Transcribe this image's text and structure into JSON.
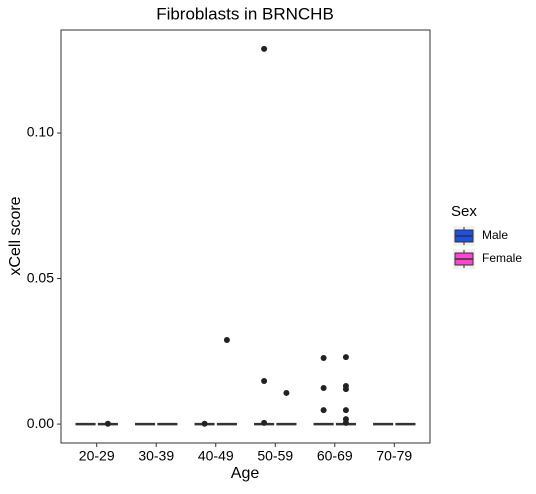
{
  "chart_data": {
    "type": "box",
    "title": "Fibroblasts in BRNCHB",
    "x_label": "Age",
    "y_label": "xCell score",
    "categories": [
      "20-29",
      "30-39",
      "40-49",
      "50-59",
      "60-69",
      "70-79"
    ],
    "legend_title": "Sex",
    "series": [
      {
        "name": "Male",
        "color": "#1d4fe6",
        "low": [
          0,
          0,
          0,
          0,
          0,
          0
        ],
        "q1": [
          0,
          0,
          0,
          0,
          0,
          0
        ],
        "median": [
          0,
          0,
          0,
          0,
          0,
          0
        ],
        "q3": [
          0,
          0,
          0,
          0,
          0,
          0
        ],
        "high": [
          0,
          0,
          0,
          0,
          0,
          0
        ],
        "outliers": [
          [],
          [],
          [
            0.0001
          ],
          [
            0.1289,
            0.0148,
            0.0004
          ],
          [
            0.0227,
            0.0124,
            0.0048
          ],
          []
        ]
      },
      {
        "name": "Female",
        "color": "#fc46d0",
        "low": [
          0,
          0,
          0,
          0,
          0,
          0
        ],
        "q1": [
          0,
          0,
          0,
          0,
          0,
          0
        ],
        "median": [
          0,
          0,
          0,
          0,
          0,
          0
        ],
        "q3": [
          0,
          0,
          0,
          0,
          0,
          0
        ],
        "high": [
          0,
          0,
          0,
          0,
          0,
          0
        ],
        "outliers": [
          [
            0.0001
          ],
          [],
          [
            0.0289
          ],
          [
            0.0107
          ],
          [
            0.023,
            0.0131,
            0.012,
            0.0048,
            0.0017,
            0.0004
          ],
          []
        ]
      }
    ],
    "ylim": [
      -0.0065,
      0.1354
    ],
    "yticks": [
      {
        "value": 0,
        "label": "0.00"
      },
      {
        "value": 0.05,
        "label": "0.05"
      },
      {
        "value": 0.1,
        "label": "0.10"
      }
    ],
    "grid": false
  }
}
